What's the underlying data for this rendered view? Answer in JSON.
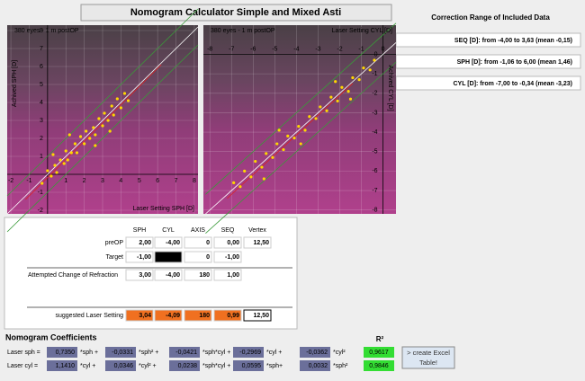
{
  "title": "Nomogram Calculator Simple and Mixed Asti",
  "correction": {
    "title": "Correction Range of Included Data",
    "rows": [
      "SEQ [D]:   from -4,00 to 3,63 (mean -0,15)",
      "SPH [D]:   from -1,06 to 6,00 (mean 1,46)",
      "CYL [D]:   from -7,00 to -0,34 (mean -3,23)"
    ]
  },
  "charts": [
    {
      "type": "scatter",
      "annotation": "380 eyes - 1 m postOP",
      "x_label": "Laser Setting SPH [D]",
      "y_label": "Achived SPH [D]",
      "xlim": [
        -2.2,
        8.2
      ],
      "ylim": [
        -2.2,
        8.3
      ],
      "xticks": [
        -2,
        -1,
        1,
        2,
        3,
        4,
        5,
        6,
        7,
        8
      ],
      "yticks": [
        -2,
        -1,
        1,
        2,
        3,
        4,
        5,
        6,
        7,
        8
      ],
      "color": "#ffd700",
      "points": {
        "x": [
          -0.3,
          0,
          0.2,
          0.4,
          0.5,
          0.7,
          0.9,
          1,
          1.1,
          1.3,
          1.5,
          1.6,
          1.8,
          2,
          2.1,
          2.3,
          2.5,
          2.6,
          2.8,
          3,
          3.1,
          3.3,
          3.5,
          3.6,
          3.8,
          4,
          4.2,
          4.4,
          1.2,
          2.6,
          0.3,
          3.4
        ],
        "y": [
          -0.5,
          0.2,
          -0.1,
          0.5,
          0.1,
          0.8,
          0.6,
          1.3,
          0.8,
          1.2,
          1.7,
          1.2,
          2.1,
          1.7,
          2.4,
          2,
          2.6,
          2.2,
          3.1,
          2.7,
          3.4,
          3,
          3.8,
          3.3,
          4.2,
          3.7,
          4.5,
          4.1,
          2.2,
          1.6,
          1.1,
          2.4
        ]
      }
    },
    {
      "type": "scatter",
      "annotation": "380 eyes - 1 m postOP",
      "x_label": "Laser Setting CYL [D]",
      "y_label": "Achived CYL [D]",
      "xlim": [
        -8.3,
        0.6
      ],
      "ylim": [
        -8.2,
        1.5
      ],
      "xticks": [
        -8,
        -7,
        -6,
        -5,
        -4,
        -3,
        -2,
        -1,
        0
      ],
      "yticks": [
        0,
        -1,
        -2,
        -3,
        -4,
        -5,
        -6,
        -7,
        -8
      ],
      "color": "#ffd700",
      "points": {
        "x": [
          -0.4,
          -0.6,
          -0.9,
          -1.1,
          -1.4,
          -1.6,
          -1.9,
          -2.1,
          -2.4,
          -2.6,
          -2.9,
          -3.1,
          -3.4,
          -3.6,
          -3.9,
          -4.1,
          -4.4,
          -4.6,
          -4.9,
          -5.1,
          -5.4,
          -5.6,
          -5.9,
          -6.1,
          -6.4,
          -6.6,
          -6.9,
          -2.2,
          -3.8,
          -4.8,
          -1.5,
          -5.5
        ],
        "y": [
          -0.3,
          -0.8,
          -0.7,
          -1.3,
          -1.2,
          -1.9,
          -1.7,
          -2.4,
          -2.2,
          -2.9,
          -2.7,
          -3.3,
          -3.2,
          -3.9,
          -3.7,
          -4.3,
          -4.2,
          -4.9,
          -4.6,
          -5.3,
          -5.1,
          -5.8,
          -5.5,
          -6.3,
          -6,
          -6.8,
          -6.6,
          -1.4,
          -4.6,
          -3.9,
          -2.3,
          -6.4
        ]
      }
    }
  ],
  "table": {
    "headers": [
      "SPH",
      "CYL",
      "AXIS",
      "SEQ",
      "Vertex"
    ],
    "rows": [
      {
        "label": "preOP",
        "cells": [
          "2,00",
          "-4,00",
          "0",
          "0,00",
          "12,50"
        ]
      },
      {
        "label": "Target",
        "cells": [
          "-1,00",
          "0,00",
          "0",
          "-1,00"
        ]
      },
      {
        "label": "Attempted Change of Refraction",
        "cells": [
          "3,00",
          "-4,00",
          "180",
          "1,00"
        ]
      },
      {
        "label": "suggested Laser Setting",
        "cells": [
          "3,04",
          "-4,09",
          "180",
          "0,99",
          "12,50"
        ]
      }
    ]
  },
  "coefficients": {
    "title": "Nomogram Coefficients",
    "r2_label": "R²",
    "rows": [
      {
        "label": "Laser sph =",
        "values": [
          "0,7350",
          "-0,0331",
          "-0,0421",
          "-0,2969",
          "-0,0362"
        ],
        "terms": [
          "*sph +",
          "*sph² +",
          "*sph*cyl +",
          "*cyl +",
          "*cyl²"
        ],
        "r2": "0,9617"
      },
      {
        "label": "Laser cyl =",
        "values": [
          "1,1410",
          "0,0346",
          "0,0238",
          "0,0595",
          "0,0032"
        ],
        "terms": [
          "*cyl +",
          "*cyl² +",
          "*sph*cyl +",
          "*sph+",
          "*sph²"
        ],
        "r2": "0,9846"
      }
    ]
  },
  "button": "> create Excel Table!"
}
